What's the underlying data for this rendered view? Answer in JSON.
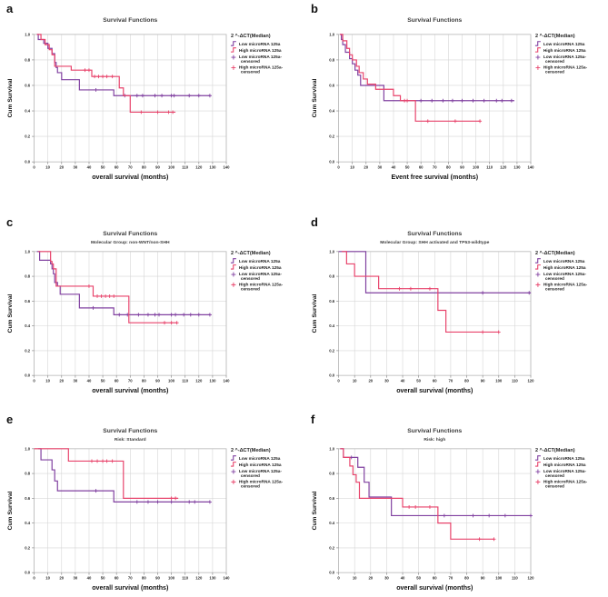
{
  "figure": {
    "colors": {
      "low": "#8040A0",
      "high": "#E8436B",
      "grid": "#d6d6d6",
      "frame": "#b8b8b8",
      "axis": "#8a8a8a",
      "text": "#2b2b2b"
    }
  },
  "chart_data": [
    {
      "panel_label": "a",
      "type": "line",
      "title": "Survival Functions",
      "subtitle": "",
      "xlabel": "overall survival (months)",
      "ylabel": "Cum Survival",
      "xlim": [
        0,
        140
      ],
      "xticks": [
        0,
        10,
        20,
        30,
        40,
        50,
        60,
        70,
        80,
        90,
        100,
        110,
        120,
        130,
        140
      ],
      "ylim": [
        0,
        1
      ],
      "yticks": [
        "0.0",
        "0.2",
        "0.4",
        "0.6",
        "0.8",
        "1.0"
      ],
      "legend_title": "2 ^-ΔCT(Median)",
      "legend": [
        "Low microRNA 125a",
        "High microRNA 125a",
        "Low microRNA 125a-censored",
        "High microRNA 125a-censored"
      ],
      "series": [
        {
          "name": "Low microRNA 125a",
          "color": "#8040A0",
          "end": 128,
          "steps": [
            [
              2,
              1.0
            ],
            [
              3,
              0.96
            ],
            [
              7,
              0.93
            ],
            [
              10,
              0.89
            ],
            [
              13,
              0.85
            ],
            [
              15,
              0.78
            ],
            [
              16,
              0.74
            ],
            [
              17,
              0.7
            ],
            [
              20,
              0.645
            ],
            [
              33,
              0.565
            ],
            [
              58,
              0.52
            ]
          ],
          "censored": [
            [
              45,
              0.565
            ],
            [
              66,
              0.52
            ],
            [
              75,
              0.52
            ],
            [
              79,
              0.52
            ],
            [
              88,
              0.52
            ],
            [
              93,
              0.52
            ],
            [
              100,
              0.52
            ],
            [
              102,
              0.52
            ],
            [
              113,
              0.52
            ],
            [
              120,
              0.52
            ],
            [
              128,
              0.52
            ]
          ]
        },
        {
          "name": "High microRNA 125a",
          "color": "#E8436B",
          "end": 103,
          "steps": [
            [
              2,
              1.0
            ],
            [
              5,
              0.96
            ],
            [
              8,
              0.92
            ],
            [
              11,
              0.88
            ],
            [
              13,
              0.84
            ],
            [
              15,
              0.75
            ],
            [
              27,
              0.72
            ],
            [
              42,
              0.67
            ],
            [
              62,
              0.58
            ],
            [
              65,
              0.52
            ],
            [
              70,
              0.39
            ]
          ],
          "censored": [
            [
              37,
              0.72
            ],
            [
              40,
              0.72
            ],
            [
              44,
              0.67
            ],
            [
              47,
              0.67
            ],
            [
              50,
              0.67
            ],
            [
              53,
              0.67
            ],
            [
              57,
              0.67
            ],
            [
              78,
              0.39
            ],
            [
              90,
              0.39
            ],
            [
              98,
              0.39
            ],
            [
              101,
              0.39
            ]
          ]
        }
      ]
    },
    {
      "panel_label": "b",
      "type": "line",
      "title": "Survival Functions",
      "subtitle": "",
      "xlabel": "Event free survival (months)",
      "ylabel": "Cum Survival",
      "xlim": [
        0,
        140
      ],
      "xticks": [
        0,
        10,
        20,
        30,
        40,
        50,
        60,
        70,
        80,
        90,
        100,
        110,
        120,
        130,
        140
      ],
      "ylim": [
        0,
        1
      ],
      "yticks": [
        "0.0",
        "0.2",
        "0.4",
        "0.6",
        "0.8",
        "1.0"
      ],
      "legend_title": "2 ^-ΔCT(Median)",
      "legend": [
        "Low microRNA 125a",
        "High microRNA 125a",
        "Low microRNA 125a-censored",
        "High microRNA 125a-censored"
      ],
      "series": [
        {
          "name": "Low microRNA 125a",
          "color": "#8040A0",
          "end": 128,
          "steps": [
            [
              1,
              1.0
            ],
            [
              2,
              0.96
            ],
            [
              3,
              0.92
            ],
            [
              5,
              0.86
            ],
            [
              8,
              0.81
            ],
            [
              10,
              0.77
            ],
            [
              12,
              0.72
            ],
            [
              14,
              0.68
            ],
            [
              16,
              0.6
            ],
            [
              33,
              0.48
            ]
          ],
          "censored": [
            [
              60,
              0.48
            ],
            [
              68,
              0.48
            ],
            [
              76,
              0.48
            ],
            [
              83,
              0.48
            ],
            [
              90,
              0.48
            ],
            [
              98,
              0.48
            ],
            [
              106,
              0.48
            ],
            [
              115,
              0.48
            ],
            [
              119,
              0.48
            ],
            [
              126,
              0.48
            ]
          ]
        },
        {
          "name": "High microRNA 125a",
          "color": "#E8436B",
          "end": 103,
          "steps": [
            [
              1,
              1.0
            ],
            [
              3,
              0.95
            ],
            [
              6,
              0.89
            ],
            [
              8,
              0.84
            ],
            [
              10,
              0.8
            ],
            [
              13,
              0.75
            ],
            [
              15,
              0.7
            ],
            [
              18,
              0.65
            ],
            [
              21,
              0.61
            ],
            [
              27,
              0.57
            ],
            [
              40,
              0.52
            ],
            [
              45,
              0.48
            ],
            [
              56,
              0.32
            ]
          ],
          "censored": [
            [
              48,
              0.48
            ],
            [
              50,
              0.48
            ],
            [
              65,
              0.32
            ],
            [
              85,
              0.32
            ],
            [
              103,
              0.32
            ]
          ]
        }
      ]
    },
    {
      "panel_label": "c",
      "type": "line",
      "title": "Survival Functions",
      "subtitle": "Molecular Group: non-WNT/non-SHH",
      "xlabel": "overall survival (months)",
      "ylabel": "Cum Survival",
      "xlim": [
        0,
        140
      ],
      "xticks": [
        0,
        10,
        20,
        30,
        40,
        50,
        60,
        70,
        80,
        90,
        100,
        110,
        120,
        130,
        140
      ],
      "ylim": [
        0,
        1
      ],
      "yticks": [
        "0.0",
        "0.2",
        "0.4",
        "0.6",
        "0.8",
        "1.0"
      ],
      "legend_title": "2 ^-ΔCT(Median)",
      "legend": [
        "Low microRNA 125a",
        "High microRNA 125a",
        "Low microRNA 125a-censored",
        "High microRNA 125a-censored"
      ],
      "series": [
        {
          "name": "Low microRNA 125a",
          "color": "#8040A0",
          "end": 128,
          "steps": [
            [
              2,
              1.0
            ],
            [
              4,
              0.93
            ],
            [
              12,
              0.9
            ],
            [
              13,
              0.86
            ],
            [
              14,
              0.82
            ],
            [
              15,
              0.75
            ],
            [
              17,
              0.72
            ],
            [
              19,
              0.655
            ],
            [
              33,
              0.545
            ],
            [
              58,
              0.49
            ]
          ],
          "censored": [
            [
              43,
              0.545
            ],
            [
              62,
              0.49
            ],
            [
              68,
              0.49
            ],
            [
              76,
              0.49
            ],
            [
              83,
              0.49
            ],
            [
              88,
              0.49
            ],
            [
              91,
              0.49
            ],
            [
              100,
              0.49
            ],
            [
              103,
              0.49
            ],
            [
              109,
              0.49
            ],
            [
              114,
              0.49
            ],
            [
              120,
              0.49
            ],
            [
              128,
              0.49
            ]
          ]
        },
        {
          "name": "High microRNA 125a",
          "color": "#E8436B",
          "end": 104,
          "steps": [
            [
              3,
              1.0
            ],
            [
              12,
              0.92
            ],
            [
              13,
              0.9
            ],
            [
              14,
              0.86
            ],
            [
              16,
              0.72
            ],
            [
              43,
              0.64
            ],
            [
              69,
              0.425
            ]
          ],
          "censored": [
            [
              40,
              0.72
            ],
            [
              46,
              0.64
            ],
            [
              49,
              0.64
            ],
            [
              52,
              0.64
            ],
            [
              55,
              0.64
            ],
            [
              58,
              0.64
            ],
            [
              95,
              0.425
            ],
            [
              100,
              0.425
            ],
            [
              104,
              0.425
            ]
          ]
        }
      ]
    },
    {
      "panel_label": "d",
      "type": "line",
      "title": "Survival Functions",
      "subtitle": "Molecular Group: SHH activated and TP53-wildtype",
      "xlabel": "overall survival (months)",
      "ylabel": "Cum Survival",
      "xlim": [
        0,
        120
      ],
      "xticks": [
        0,
        10,
        20,
        30,
        40,
        50,
        60,
        70,
        80,
        90,
        100,
        110,
        120
      ],
      "ylim": [
        0,
        1
      ],
      "yticks": [
        "0.0",
        "0.2",
        "0.4",
        "0.6",
        "0.8",
        "1.0"
      ],
      "legend_title": "2 ^-ΔCT(Median)",
      "legend": [
        "Low microRNA 125a",
        "High microRNA 125a",
        "Low microRNA 125a-censored",
        "High microRNA 125a-censored"
      ],
      "series": [
        {
          "name": "Low microRNA 125a",
          "color": "#8040A0",
          "end": 120,
          "steps": [
            [
              0,
              1.0
            ],
            [
              17,
              0.667
            ]
          ],
          "censored": [
            [
              90,
              0.667
            ],
            [
              119,
              0.667
            ]
          ]
        },
        {
          "name": "High microRNA 125a",
          "color": "#E8436B",
          "end": 100,
          "steps": [
            [
              2,
              1.0
            ],
            [
              5,
              0.9
            ],
            [
              10,
              0.8
            ],
            [
              25,
              0.7
            ],
            [
              62,
              0.525
            ],
            [
              67,
              0.35
            ]
          ],
          "censored": [
            [
              38,
              0.7
            ],
            [
              45,
              0.7
            ],
            [
              57,
              0.7
            ],
            [
              90,
              0.35
            ],
            [
              100,
              0.35
            ]
          ]
        }
      ]
    },
    {
      "panel_label": "e",
      "type": "line",
      "title": "Survival Functions",
      "subtitle": "Risk: Standard",
      "xlabel": "overall survival (months)",
      "ylabel": "Cum Survival",
      "xlim": [
        0,
        140
      ],
      "xticks": [
        0,
        10,
        20,
        30,
        40,
        50,
        60,
        70,
        80,
        90,
        100,
        110,
        120,
        130,
        140
      ],
      "ylim": [
        0,
        1
      ],
      "yticks": [
        "0.0",
        "0.2",
        "0.4",
        "0.6",
        "0.8",
        "1.0"
      ],
      "legend_title": "2 ^-ΔCT(Median)",
      "legend": [
        "Low microRNA 125a",
        "High microRNA 125a",
        "Low microRNA 125a-censored",
        "High microRNA 125a-censored"
      ],
      "series": [
        {
          "name": "Low microRNA 125a",
          "color": "#8040A0",
          "end": 128,
          "steps": [
            [
              3,
              1.0
            ],
            [
              5,
              0.91
            ],
            [
              13,
              0.83
            ],
            [
              15,
              0.74
            ],
            [
              17,
              0.66
            ],
            [
              58,
              0.57
            ]
          ],
          "censored": [
            [
              45,
              0.66
            ],
            [
              75,
              0.57
            ],
            [
              83,
              0.57
            ],
            [
              90,
              0.57
            ],
            [
              100,
              0.57
            ],
            [
              113,
              0.57
            ],
            [
              117,
              0.57
            ],
            [
              128,
              0.57
            ]
          ]
        },
        {
          "name": "High microRNA 125a",
          "color": "#E8436B",
          "end": 105,
          "steps": [
            [
              0,
              1.0
            ],
            [
              25,
              0.9
            ],
            [
              65,
              0.6
            ]
          ],
          "censored": [
            [
              42,
              0.9
            ],
            [
              46,
              0.9
            ],
            [
              50,
              0.9
            ],
            [
              53,
              0.9
            ],
            [
              57,
              0.9
            ],
            [
              100,
              0.6
            ],
            [
              103,
              0.6
            ]
          ]
        }
      ]
    },
    {
      "panel_label": "f",
      "type": "line",
      "title": "Survival Functions",
      "subtitle": "Risk: high",
      "xlabel": "overall survival (months)",
      "ylabel": "Cum Survival",
      "xlim": [
        0,
        120
      ],
      "xticks": [
        0,
        10,
        20,
        30,
        40,
        50,
        60,
        70,
        80,
        90,
        100,
        110,
        120
      ],
      "ylim": [
        0,
        1
      ],
      "yticks": [
        "0.0",
        "0.2",
        "0.4",
        "0.6",
        "0.8",
        "1.0"
      ],
      "legend_title": "2 ^-ΔCT(Median)",
      "legend": [
        "Low microRNA 125a",
        "High microRNA 125a",
        "Low microRNA 125a-censored",
        "High microRNA 125a-censored"
      ],
      "series": [
        {
          "name": "Low microRNA 125a",
          "color": "#8040A0",
          "end": 120,
          "steps": [
            [
              1,
              1.0
            ],
            [
              3,
              0.93
            ],
            [
              12,
              0.85
            ],
            [
              16,
              0.73
            ],
            [
              19,
              0.61
            ],
            [
              33,
              0.46
            ]
          ],
          "censored": [
            [
              8,
              0.93
            ],
            [
              66,
              0.46
            ],
            [
              84,
              0.46
            ],
            [
              94,
              0.46
            ],
            [
              104,
              0.46
            ],
            [
              120,
              0.46
            ]
          ]
        },
        {
          "name": "High microRNA 125a",
          "color": "#E8436B",
          "end": 97,
          "steps": [
            [
              1,
              1.0
            ],
            [
              3,
              0.93
            ],
            [
              7,
              0.86
            ],
            [
              9,
              0.79
            ],
            [
              11,
              0.73
            ],
            [
              13,
              0.6
            ],
            [
              40,
              0.53
            ],
            [
              62,
              0.4
            ],
            [
              70,
              0.27
            ]
          ],
          "censored": [
            [
              44,
              0.53
            ],
            [
              48,
              0.53
            ],
            [
              57,
              0.53
            ],
            [
              88,
              0.27
            ],
            [
              97,
              0.27
            ]
          ]
        }
      ]
    }
  ]
}
